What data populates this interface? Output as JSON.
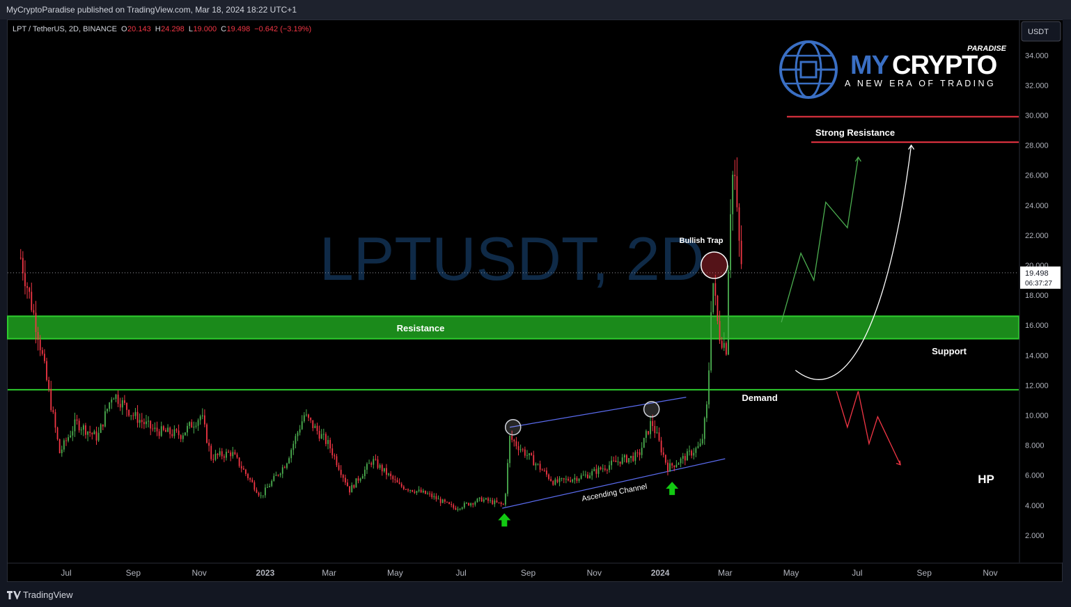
{
  "header": {
    "published": "MyCryptoParadise published on TradingView.com, Mar 18, 2024 18:22 UTC+1"
  },
  "symbol": {
    "name": "LPT / TetherUS, 2D, BINANCE",
    "o_label": "O",
    "o": "20.143",
    "h_label": "H",
    "h": "24.298",
    "l_label": "L",
    "l": "19.000",
    "c_label": "C",
    "c": "19.498",
    "change": "−0.642 (−3.19%)"
  },
  "watermark": {
    "ticker": "LPTUSDT, 2D",
    "pair": "LPT / TetherUS"
  },
  "logo": {
    "paradise": "PARADISE",
    "my": "MY",
    "crypto": "CRYPTO",
    "tagline": "A NEW ERA OF TRADING"
  },
  "price_axis": {
    "currency": "USDT",
    "ticks": [
      "34.000",
      "32.000",
      "30.000",
      "28.000",
      "26.000",
      "24.000",
      "22.000",
      "20.000",
      "18.000",
      "16.000",
      "14.000",
      "12.000",
      "10.000",
      "8.000",
      "6.000",
      "4.000",
      "2.000"
    ],
    "last_price": "19.498",
    "countdown": "06:37:27"
  },
  "time_axis": {
    "ticks": [
      "Jul",
      "Sep",
      "Nov",
      "2023",
      "Mar",
      "May",
      "Jul",
      "Sep",
      "Nov",
      "2024",
      "Mar",
      "May",
      "Jul",
      "Sep",
      "Nov"
    ]
  },
  "annotations": {
    "resistance": "Resistance",
    "support": "Support",
    "demand": "Demand",
    "strong_resistance": "Strong Resistance",
    "bullish_trap": "Bullish Trap",
    "ascending_channel": "Ascending Channel",
    "hp": "HP"
  },
  "colors": {
    "background": "#000000",
    "up": "#4caf50",
    "down": "#f23645",
    "zone": "#1b8a1b",
    "zone_border": "#2ecc2e",
    "channel": "#5b6cf0",
    "resistance_line": "#f23645"
  },
  "chart_data": {
    "type": "candlestick",
    "symbol": "LPT / TetherUS",
    "interval": "2D",
    "exchange": "BINANCE",
    "ylim": [
      0,
      35
    ],
    "ohlc_last": {
      "open": 20.143,
      "high": 24.298,
      "low": 19.0,
      "close": 19.498,
      "change": -0.642,
      "change_pct": -3.19
    },
    "price_path": [
      {
        "date": "2022-05-20",
        "close": 20.5
      },
      {
        "date": "2022-06-05",
        "close": 15.5
      },
      {
        "date": "2022-06-25",
        "close": 7.5
      },
      {
        "date": "2022-07-10",
        "close": 9.5
      },
      {
        "date": "2022-07-30",
        "close": 8.5
      },
      {
        "date": "2022-08-13",
        "close": 11.5
      },
      {
        "date": "2022-09-01",
        "close": 10.0
      },
      {
        "date": "2022-09-20",
        "close": 9.0
      },
      {
        "date": "2022-10-15",
        "close": 8.7
      },
      {
        "date": "2022-11-03",
        "close": 10.0
      },
      {
        "date": "2022-11-12",
        "close": 7.2
      },
      {
        "date": "2022-12-01",
        "close": 7.5
      },
      {
        "date": "2022-12-28",
        "close": 4.6
      },
      {
        "date": "2023-01-20",
        "close": 6.8
      },
      {
        "date": "2023-02-06",
        "close": 10.0
      },
      {
        "date": "2023-03-01",
        "close": 8.0
      },
      {
        "date": "2023-03-20",
        "close": 5.0
      },
      {
        "date": "2023-04-10",
        "close": 7.0
      },
      {
        "date": "2023-05-05",
        "close": 5.3
      },
      {
        "date": "2023-06-01",
        "close": 4.7
      },
      {
        "date": "2023-06-25",
        "close": 3.8
      },
      {
        "date": "2023-07-20",
        "close": 4.4
      },
      {
        "date": "2023-08-10",
        "close": 4.0
      },
      {
        "date": "2023-08-15",
        "close": 8.5
      },
      {
        "date": "2023-09-05",
        "close": 7.0
      },
      {
        "date": "2023-09-25",
        "close": 5.5
      },
      {
        "date": "2023-10-25",
        "close": 6.0
      },
      {
        "date": "2023-11-25",
        "close": 7.0
      },
      {
        "date": "2023-12-12",
        "close": 7.3
      },
      {
        "date": "2023-12-24",
        "close": 9.6
      },
      {
        "date": "2024-01-08",
        "close": 6.5
      },
      {
        "date": "2024-01-20",
        "close": 7.0
      },
      {
        "date": "2024-02-08",
        "close": 8.0
      },
      {
        "date": "2024-02-14",
        "close": 11.0
      },
      {
        "date": "2024-02-18",
        "close": 19.5
      },
      {
        "date": "2024-02-24",
        "close": 15.5
      },
      {
        "date": "2024-03-02",
        "close": 14.5
      },
      {
        "date": "2024-03-05",
        "close": 23.0
      },
      {
        "date": "2024-03-09",
        "close": 27.0
      },
      {
        "date": "2024-03-13",
        "close": 22.0
      },
      {
        "date": "2024-03-17",
        "close": 19.498
      }
    ],
    "levels": [
      {
        "name": "Resistance / Support zone",
        "from": 15.1,
        "to": 16.6
      },
      {
        "name": "Demand",
        "value": 11.7
      },
      {
        "name": "Strong Resistance",
        "value": 28.2
      },
      {
        "value": 29.9
      }
    ],
    "ascending_channel": {
      "upper": [
        {
          "date": "2023-08-15",
          "value": 9.2
        },
        {
          "date": "2024-01-25",
          "value": 11.2
        }
      ],
      "lower": [
        {
          "date": "2023-08-08",
          "value": 3.8
        },
        {
          "date": "2024-03-01",
          "value": 7.1
        }
      ]
    },
    "projections": {
      "bullish": [
        {
          "date": "2024-04-22",
          "value": 16.2
        },
        {
          "date": "2024-05-10",
          "value": 20.8
        },
        {
          "date": "2024-05-22",
          "value": 19.0
        },
        {
          "date": "2024-06-02",
          "value": 24.2
        },
        {
          "date": "2024-06-22",
          "value": 22.5
        },
        {
          "date": "2024-07-02",
          "value": 27.2
        }
      ],
      "curve": [
        {
          "date": "2024-05-05",
          "value": 13.0
        },
        {
          "date": "2024-06-20",
          "value": 11.8
        },
        {
          "date": "2024-07-30",
          "value": 16.0
        },
        {
          "date": "2024-08-20",
          "value": 28.0
        }
      ],
      "bearish": [
        {
          "date": "2024-06-12",
          "value": 11.6
        },
        {
          "date": "2024-06-22",
          "value": 9.2
        },
        {
          "date": "2024-07-02",
          "value": 11.6
        },
        {
          "date": "2024-07-12",
          "value": 8.1
        },
        {
          "date": "2024-07-20",
          "value": 9.9
        },
        {
          "date": "2024-08-10",
          "value": 6.7
        }
      ]
    },
    "markers": {
      "arrows_up": [
        {
          "date": "2023-08-10",
          "value": 3.0
        },
        {
          "date": "2024-01-12",
          "value": 5.1
        }
      ],
      "circles": [
        {
          "date": "2023-08-18",
          "value": 9.2
        },
        {
          "date": "2023-12-24",
          "value": 10.4
        }
      ],
      "bullish_trap": {
        "date": "2024-02-20",
        "value": 20.0
      }
    }
  }
}
